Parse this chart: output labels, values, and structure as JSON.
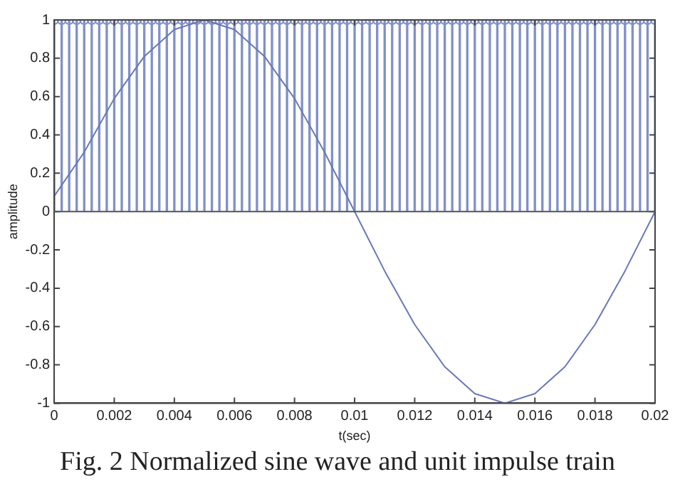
{
  "chart_data": {
    "type": "line",
    "xlabel": "t(sec)",
    "ylabel": "amplitude",
    "xlim": [
      0,
      0.02
    ],
    "ylim": [
      -1,
      1
    ],
    "xticks": [
      0,
      0.002,
      0.004,
      0.006,
      0.008,
      0.01,
      0.012,
      0.014,
      0.016,
      0.018,
      0.02
    ],
    "yticks": [
      -1,
      -0.8,
      -0.6,
      -0.4,
      -0.2,
      0,
      0.2,
      0.4,
      0.6,
      0.8,
      1
    ],
    "grid": false,
    "legend": false,
    "marker": "none",
    "line_style": "solid",
    "ref_lines": [
      {
        "axis": "y",
        "value": 0,
        "label": null
      }
    ],
    "annotations": [
      "Fig. 2 Normalized sine wave and unit impulse train"
    ],
    "series": [
      {
        "color": "#6878b8",
        "x": [
          0,
          0.001,
          0.002,
          0.003,
          0.004,
          0.005,
          0.006,
          0.007,
          0.008,
          0.009,
          0.01,
          0.011,
          0.012,
          0.013,
          0.014,
          0.015,
          0.016,
          0.017,
          0.018,
          0.019,
          0.02
        ],
        "values": [
          0.08,
          0.31,
          0.59,
          0.81,
          0.95,
          1,
          0.95,
          0.81,
          0.59,
          0.31,
          0,
          -0.31,
          -0.59,
          -0.81,
          -0.95,
          -1,
          -0.95,
          -0.81,
          -0.59,
          -0.31,
          0
        ]
      },
      {
        "type": "lollipop",
        "color": "#8090c8",
        "marker": "circle",
        "x": [
          0,
          0.00025,
          0.0005,
          0.00075,
          0.001,
          0.00125,
          0.0015,
          0.00175,
          0.002,
          0.00225,
          0.0025,
          0.00275,
          0.003,
          0.00325,
          0.0035,
          0.00375,
          0.004,
          0.00425,
          0.0045,
          0.00475,
          0.005,
          0.00525,
          0.0055,
          0.00575,
          0.006,
          0.00625,
          0.0065,
          0.00675,
          0.007,
          0.00725,
          0.0075,
          0.00775,
          0.008,
          0.00825,
          0.0085,
          0.00875,
          0.009,
          0.00925,
          0.0095,
          0.00975,
          0.01,
          0.01025,
          0.0105,
          0.01075,
          0.011,
          0.01125,
          0.0115,
          0.01175,
          0.012,
          0.01225,
          0.0125,
          0.01275,
          0.013,
          0.01325,
          0.0135,
          0.01375,
          0.014,
          0.01425,
          0.0145,
          0.01475,
          0.015,
          0.01525,
          0.0155,
          0.01575,
          0.016,
          0.01625,
          0.0165,
          0.01675,
          0.017,
          0.01725,
          0.0175,
          0.01775,
          0.018,
          0.01825,
          0.0185,
          0.01875,
          0.019,
          0.01925,
          0.0195,
          0.01975,
          0.02
        ],
        "values": [
          1,
          1,
          1,
          1,
          1,
          1,
          1,
          1,
          1,
          1,
          1,
          1,
          1,
          1,
          1,
          1,
          1,
          1,
          1,
          1,
          1,
          1,
          1,
          1,
          1,
          1,
          1,
          1,
          1,
          1,
          1,
          1,
          1,
          1,
          1,
          1,
          1,
          1,
          1,
          1,
          1,
          1,
          1,
          1,
          1,
          1,
          1,
          1,
          1,
          1,
          1,
          1,
          1,
          1,
          1,
          1,
          1,
          1,
          1,
          1,
          1,
          1,
          1,
          1,
          1,
          1,
          1,
          1,
          1,
          1,
          1,
          1,
          1,
          1,
          1,
          1,
          1,
          1,
          1,
          1,
          1
        ]
      }
    ]
  }
}
